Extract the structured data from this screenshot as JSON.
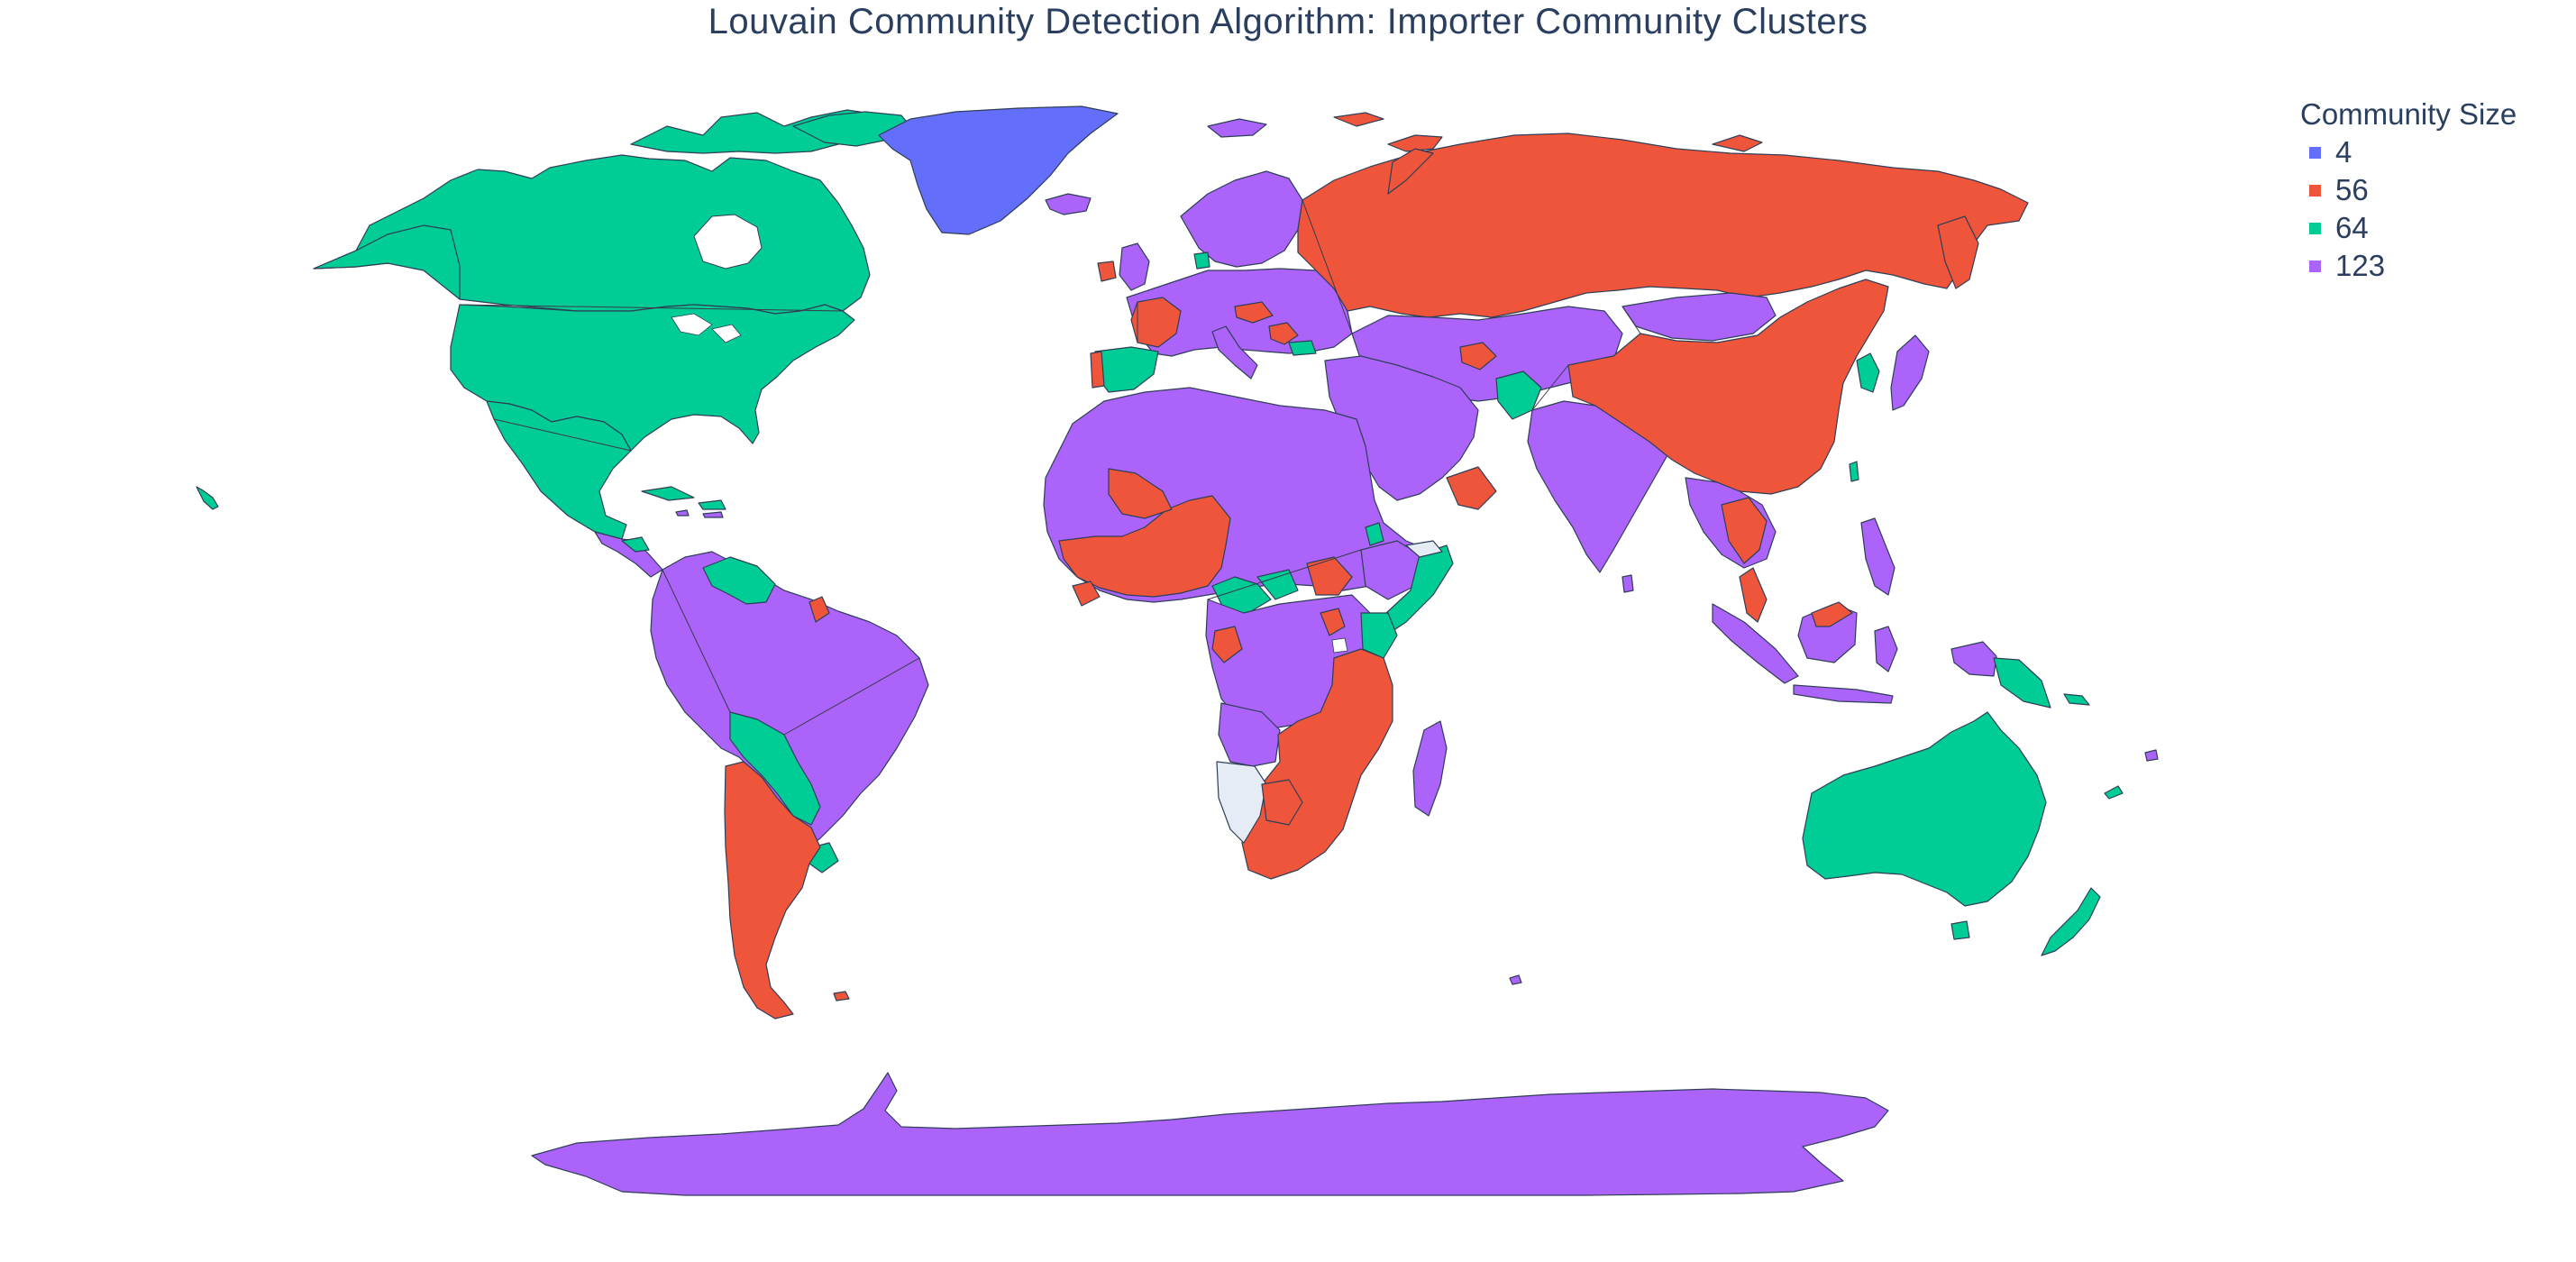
{
  "map": {
    "title": "Louvain Community Detection Algorithm: Importer Community Clusters",
    "legend_title": "Community Size",
    "legend": [
      {
        "label": "4",
        "color": "#636efa"
      },
      {
        "label": "56",
        "color": "#ef553b"
      },
      {
        "label": "64",
        "color": "#00cc96"
      },
      {
        "label": "123",
        "color": "#ab63fa"
      }
    ],
    "no_data_color": "#e5ecf6",
    "border_color": "#2f3e57",
    "regions": [
      {
        "name": "Greenland",
        "community": "4"
      },
      {
        "name": "Canada",
        "community": "64"
      },
      {
        "name": "United States",
        "community": "64"
      },
      {
        "name": "Mexico",
        "community": "64"
      },
      {
        "name": "Russia",
        "community": "56"
      },
      {
        "name": "China",
        "community": "56"
      },
      {
        "name": "Argentina",
        "community": "56"
      },
      {
        "name": "Brazil",
        "community": "123"
      },
      {
        "name": "Australia",
        "community": "64"
      },
      {
        "name": "India",
        "community": "123"
      },
      {
        "name": "Antarctica",
        "community": "123"
      },
      {
        "name": "Namibia",
        "community": "no data"
      },
      {
        "name": "Somaliland",
        "community": "no data"
      }
    ]
  }
}
